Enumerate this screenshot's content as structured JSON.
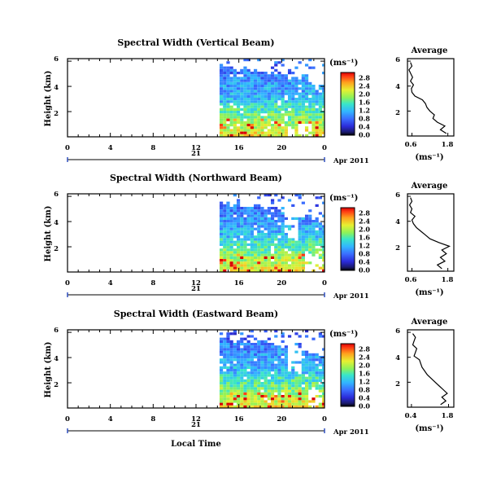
{
  "chart_data": [
    {
      "type": "heatmap",
      "title": "Spectral Width (Vertical Beam)",
      "ylabel": "Height (km)",
      "xlabel": "",
      "x_ticks": [
        "0",
        "4",
        "8",
        "12",
        "16",
        "20",
        "0"
      ],
      "y_ticks": [
        "2",
        "4",
        "6"
      ],
      "date_labels": [
        "21",
        "Apr 2011"
      ],
      "colorbar": {
        "label": "(ms⁻¹)",
        "ticks": [
          "0.0",
          "0.4",
          "0.8",
          "1.2",
          "1.6",
          "2.0",
          "2.4",
          "2.8"
        ]
      },
      "data_start_hour": 14.2,
      "profile": {
        "title": "Average",
        "xlabel": "(ms⁻¹)",
        "x_ticks": [
          "0.6",
          "1.8"
        ],
        "y_ticks": [
          "2",
          "4",
          "6"
        ],
        "heights": [
          0.2,
          0.5,
          0.8,
          1.1,
          1.4,
          1.7,
          2.0,
          2.3,
          2.6,
          2.9,
          3.2,
          3.5,
          3.8,
          4.1,
          4.4,
          4.7,
          5.0,
          5.3,
          5.6,
          5.9
        ],
        "values": [
          1.75,
          1.55,
          1.7,
          1.45,
          1.3,
          1.35,
          1.2,
          1.1,
          1.05,
          0.95,
          0.7,
          0.6,
          0.58,
          0.65,
          0.55,
          0.62,
          0.56,
          0.5,
          0.6,
          0.55
        ]
      }
    },
    {
      "type": "heatmap",
      "title": "Spectral Width (Northward Beam)",
      "ylabel": "Height (km)",
      "xlabel": "",
      "x_ticks": [
        "0",
        "4",
        "8",
        "12",
        "16",
        "20",
        "0"
      ],
      "y_ticks": [
        "2",
        "4",
        "6"
      ],
      "date_labels": [
        "21",
        "Apr 2011"
      ],
      "colorbar": {
        "label": "(ms⁻¹)",
        "ticks": [
          "0.0",
          "0.4",
          "0.8",
          "1.2",
          "1.6",
          "2.0",
          "2.4",
          "2.8"
        ]
      },
      "data_start_hour": 14.2,
      "profile": {
        "title": "Average",
        "xlabel": "(ms⁻¹)",
        "x_ticks": [
          "0.6",
          "1.8"
        ],
        "y_ticks": [
          "2",
          "4",
          "6"
        ],
        "heights": [
          0.2,
          0.5,
          0.8,
          1.1,
          1.4,
          1.7,
          2.0,
          2.3,
          2.6,
          2.9,
          3.2,
          3.5,
          3.8,
          4.1,
          4.4,
          4.7,
          5.0,
          5.3,
          5.6,
          5.9
        ],
        "values": [
          1.6,
          1.45,
          1.7,
          1.55,
          1.75,
          1.6,
          1.85,
          1.5,
          1.2,
          1.05,
          0.9,
          0.75,
          0.65,
          0.6,
          0.7,
          0.55,
          0.6,
          0.52,
          0.6,
          0.55
        ]
      }
    },
    {
      "type": "heatmap",
      "title": "Spectral Width (Eastward Beam)",
      "ylabel": "Height (km)",
      "xlabel": "Local Time",
      "x_ticks": [
        "0",
        "4",
        "8",
        "12",
        "16",
        "20",
        "0"
      ],
      "y_ticks": [
        "2",
        "4",
        "6"
      ],
      "date_labels": [
        "21",
        "Apr 2011"
      ],
      "colorbar": {
        "label": "(ms⁻¹)",
        "ticks": [
          "0.0",
          "0.4",
          "0.8",
          "1.2",
          "1.6",
          "2.0",
          "2.4",
          "2.8"
        ]
      },
      "data_start_hour": 14.2,
      "profile": {
        "title": "Average",
        "xlabel": "(ms⁻¹)",
        "x_ticks": [
          "0.4",
          "1.8"
        ],
        "y_ticks": [
          "2",
          "4",
          "6"
        ],
        "heights": [
          0.2,
          0.5,
          0.8,
          1.1,
          1.4,
          1.7,
          2.0,
          2.3,
          2.6,
          2.9,
          3.2,
          3.5,
          3.8,
          4.1,
          4.4,
          4.7,
          5.0,
          5.3,
          5.6,
          5.9
        ],
        "values": [
          1.5,
          1.7,
          1.55,
          1.75,
          1.6,
          1.45,
          1.3,
          1.15,
          1.0,
          0.9,
          0.8,
          0.75,
          0.7,
          0.5,
          0.55,
          0.6,
          0.45,
          0.5,
          0.55,
          0.45
        ]
      }
    }
  ]
}
